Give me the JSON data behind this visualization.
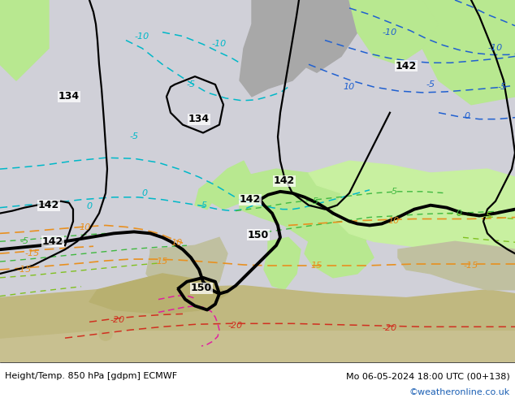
{
  "title_left": "Height/Temp. 850 hPa [gdpm] ECMWF",
  "title_right": "Mo 06-05-2024 18:00 UTC (00+138)",
  "credit": "©weatheronline.co.uk",
  "fig_width": 6.34,
  "fig_height": 4.9,
  "dpi": 100,
  "ocean_color": "#d0d0d0",
  "land_green_color": "#b8e890",
  "land_green2_color": "#c8f0a0",
  "land_gray_color": "#a8a8a8",
  "land_sand_color": "#c8c090",
  "footer_left_color": "black",
  "footer_right_color": "black",
  "footer_credit_color": "#1a5fb4",
  "footer_fontsize": 8.0,
  "credit_fontsize": 8.0
}
